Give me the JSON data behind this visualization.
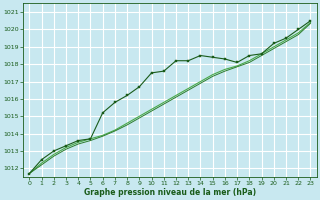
{
  "title": "Graphe pression niveau de la mer (hPa)",
  "bg_color": "#c8e8f0",
  "grid_color": "#ffffff",
  "dark": "#1a5c1a",
  "medium": "#2e7d2e",
  "light": "#4aaa4a",
  "xlim": [
    -0.5,
    23.5
  ],
  "ylim": [
    1011.5,
    1021.5
  ],
  "yticks": [
    1012,
    1013,
    1014,
    1015,
    1016,
    1017,
    1018,
    1019,
    1020,
    1021
  ],
  "xticks": [
    0,
    1,
    2,
    3,
    4,
    5,
    6,
    7,
    8,
    9,
    10,
    11,
    12,
    13,
    14,
    15,
    16,
    17,
    18,
    19,
    20,
    21,
    22,
    23
  ],
  "series_marked": {
    "x": [
      0,
      1,
      2,
      3,
      4,
      5,
      6,
      7,
      8,
      9,
      10,
      11,
      12,
      13,
      14,
      15,
      16,
      17,
      18,
      19,
      20,
      21,
      22,
      23
    ],
    "y": [
      1011.7,
      1012.5,
      1013.0,
      1013.3,
      1013.6,
      1013.7,
      1015.2,
      1015.8,
      1016.2,
      1016.7,
      1017.5,
      1017.6,
      1018.2,
      1018.2,
      1018.5,
      1018.4,
      1018.3,
      1018.1,
      1018.5,
      1018.6,
      1019.2,
      1019.5,
      1020.0,
      1020.5
    ]
  },
  "series_linear1": {
    "x": [
      0,
      1,
      2,
      3,
      4,
      5,
      6,
      7,
      8,
      9,
      10,
      11,
      12,
      13,
      14,
      15,
      16,
      17,
      18,
      19,
      20,
      21,
      22,
      23
    ],
    "y": [
      1011.7,
      1012.3,
      1012.8,
      1013.2,
      1013.5,
      1013.7,
      1013.9,
      1014.2,
      1014.6,
      1015.0,
      1015.4,
      1015.8,
      1016.2,
      1016.6,
      1017.0,
      1017.4,
      1017.7,
      1017.9,
      1018.2,
      1018.6,
      1019.0,
      1019.4,
      1019.8,
      1020.4
    ]
  },
  "series_linear2": {
    "x": [
      0,
      1,
      2,
      3,
      4,
      5,
      6,
      7,
      8,
      9,
      10,
      11,
      12,
      13,
      14,
      15,
      16,
      17,
      18,
      19,
      20,
      21,
      22,
      23
    ],
    "y": [
      1011.7,
      1012.2,
      1012.7,
      1013.1,
      1013.4,
      1013.6,
      1013.85,
      1014.15,
      1014.5,
      1014.9,
      1015.3,
      1015.7,
      1016.1,
      1016.5,
      1016.9,
      1017.3,
      1017.6,
      1017.85,
      1018.1,
      1018.5,
      1018.9,
      1019.3,
      1019.7,
      1020.35
    ]
  }
}
